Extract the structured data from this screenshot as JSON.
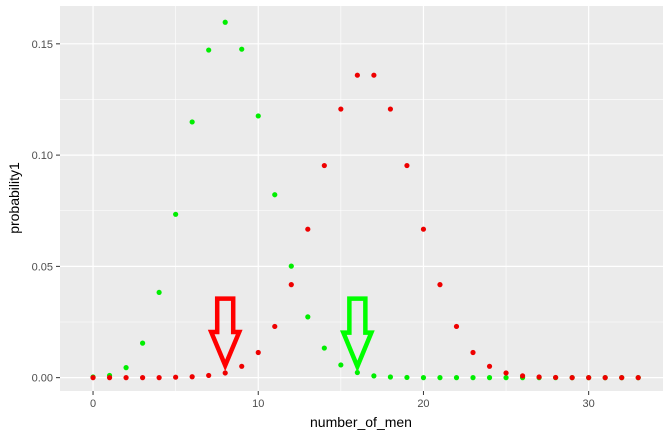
{
  "chart_data": {
    "type": "scatter",
    "xlabel": "number_of_men",
    "ylabel": "probability1",
    "xlim": [
      -2,
      34.5
    ],
    "ylim": [
      -0.006,
      0.167
    ],
    "x_ticks": [
      0,
      10,
      20,
      30
    ],
    "x_tick_labels": [
      "0",
      "10",
      "20",
      "30"
    ],
    "y_ticks": [
      0.0,
      0.05,
      0.1,
      0.15
    ],
    "y_tick_labels": [
      "0.00",
      "0.05",
      "0.10",
      "0.15"
    ],
    "x_minor_ticks": [
      5,
      15,
      25
    ],
    "y_minor_ticks": [
      0.025,
      0.075,
      0.125
    ],
    "grid": true,
    "panel_background": "#ebebeb",
    "grid_color": "#ffffff",
    "series": [
      {
        "color": "#00ee00",
        "x": [
          0,
          1,
          2,
          3,
          4,
          5,
          6,
          7,
          8,
          9,
          10,
          11,
          12,
          13,
          14,
          15,
          16,
          17,
          18,
          19,
          20,
          21,
          22,
          23,
          24,
          25,
          26,
          27,
          28,
          29,
          30,
          31,
          32,
          33
        ],
        "y": [
          0.0003,
          0.001,
          0.0045,
          0.0155,
          0.0383,
          0.0734,
          0.1149,
          0.1472,
          0.1597,
          0.1476,
          0.1176,
          0.0822,
          0.0501,
          0.0273,
          0.0133,
          0.0057,
          0.0023,
          0.0008,
          0.0003,
          0.0001,
          0,
          0,
          0,
          0,
          0,
          0,
          0,
          0,
          0,
          0,
          0,
          0,
          0,
          0
        ]
      },
      {
        "color": "#ee0000",
        "x": [
          0,
          1,
          2,
          3,
          4,
          5,
          6,
          7,
          8,
          9,
          10,
          11,
          12,
          13,
          14,
          15,
          16,
          17,
          18,
          19,
          20,
          21,
          22,
          23,
          24,
          25,
          26,
          27,
          28,
          29,
          30,
          31,
          32,
          33
        ],
        "y": [
          0,
          0,
          0,
          0,
          0,
          0.0002,
          0.0004,
          0.001,
          0.0021,
          0.0051,
          0.0113,
          0.023,
          0.0418,
          0.0667,
          0.0953,
          0.1207,
          0.1359,
          0.1359,
          0.1207,
          0.0953,
          0.0667,
          0.0418,
          0.023,
          0.0113,
          0.0051,
          0.0021,
          0.0008,
          0.0003,
          0.0001,
          0,
          0,
          0,
          0,
          0
        ]
      }
    ],
    "annotations": [
      {
        "type": "arrow-down",
        "color": "#ff0000",
        "x": 8,
        "y_top": 0.0355,
        "y_tip": 0.0055
      },
      {
        "type": "arrow-down",
        "color": "#00ff00",
        "x": 16,
        "y_top": 0.0355,
        "y_tip": 0.005
      }
    ]
  }
}
